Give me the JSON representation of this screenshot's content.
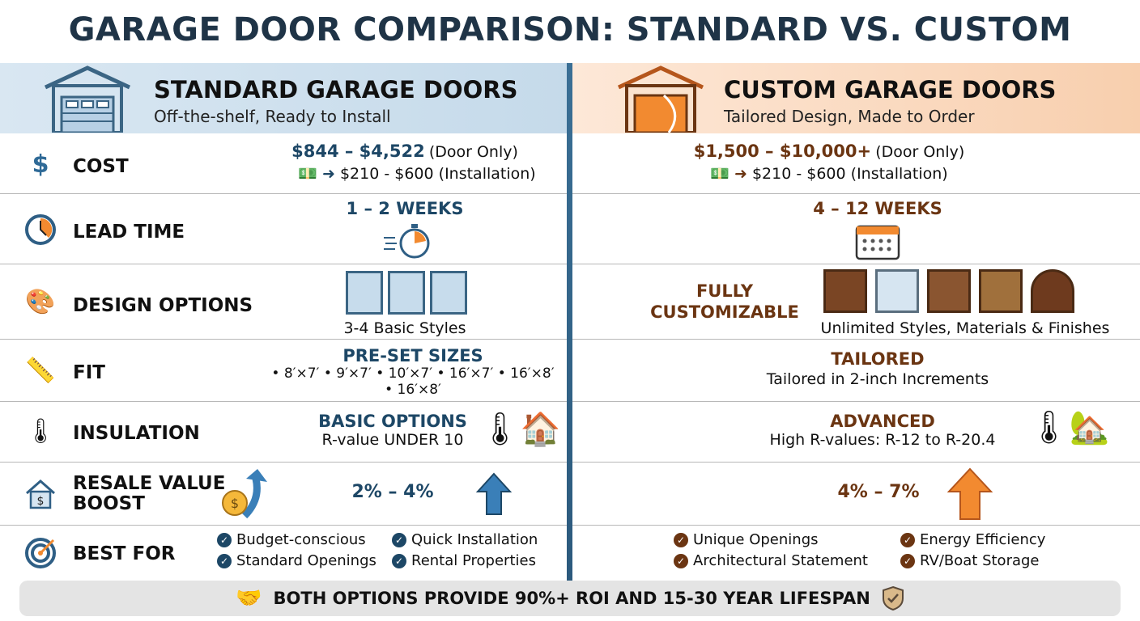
{
  "title": "GARAGE DOOR COMPARISON: STANDARD VS. CUSTOM",
  "colors": {
    "standard_accent": "#1d4766",
    "custom_accent": "#6b3512",
    "arrow_blue": "#3a7fb8",
    "arrow_orange": "#f28a30"
  },
  "standard": {
    "heading": "STANDARD GARAGE DOORS",
    "subheading": "Off-the-shelf, Ready to Install",
    "icon": "garage-blue-icon"
  },
  "custom": {
    "heading": "CUSTOM GARAGE DOORS",
    "subheading": "Tailored Design, Made to Order",
    "icon": "garage-orange-icon"
  },
  "rows": {
    "cost": {
      "label": "COST",
      "icon": "dollar-icon",
      "standard": {
        "range": "$844 – $4,522",
        "range_note": "(Door Only)",
        "install": "$210 - $600 (Installation)"
      },
      "custom": {
        "range": "$1,500 – $10,000+",
        "range_note": "(Door Only)",
        "install": "$210 - $600 (Installation)"
      }
    },
    "lead_time": {
      "label": "LEAD TIME",
      "icon": "clock-icon",
      "standard": "1 – 2 WEEKS",
      "custom": "4 – 12 WEEKS"
    },
    "design": {
      "label": "DESIGN OPTIONS",
      "icon": "palette-icon",
      "standard": "3-4 Basic Styles",
      "custom_heading": "FULLY CUSTOMIZABLE",
      "custom": "Unlimited Styles, Materials & Finishes"
    },
    "fit": {
      "label": "FIT",
      "icon": "ruler-icon",
      "standard_heading": "PRE-SET SIZES",
      "standard_sizes": "• 8′×7′ • 9′×7′ • 10′×7′ • 16′×7′ • 16′×8′",
      "standard_sizes_2": "• 16′×8′",
      "custom_heading": "TAILORED",
      "custom": "Tailored in 2-inch Increments"
    },
    "insulation": {
      "label": "INSULATION",
      "icon": "thermometer-icon",
      "standard_heading": "BASIC OPTIONS",
      "standard": "R-value UNDER 10",
      "custom_heading": "ADVANCED",
      "custom": "High R-values: R-12 to R-20.4"
    },
    "resale": {
      "label": "RESALE VALUE BOOST",
      "icon": "house-dollar-icon",
      "standard": "2% – 4%",
      "custom": "4% – 7%"
    },
    "best_for": {
      "label": "BEST FOR",
      "icon": "target-icon",
      "standard": [
        "Budget-conscious",
        "Quick Installation",
        "Standard Openings",
        "Rental Properties"
      ],
      "custom": [
        "Unique Openings",
        "Energy Efficiency",
        "Architectural Statement",
        "RV/Boat Storage"
      ]
    }
  },
  "footer": "BOTH OPTIONS PROVIDE 90%+ ROI AND 15-30 YEAR LIFESPAN"
}
